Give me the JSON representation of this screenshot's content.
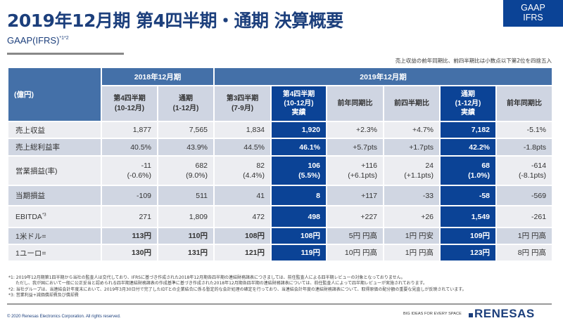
{
  "header": {
    "title": "2019年12月期 第4四半期・通期 決算概要",
    "subtitle": "GAAP(IFRS)",
    "subtitle_sup": "*1*2",
    "badge_line1": "GAAP",
    "badge_line2": "IFRS"
  },
  "note_top": "売上収益の前年同期比、前四半期比は小数点以下第2位を四捨五入",
  "table": {
    "unit_label": "(億円)",
    "group_2018": "2018年12月期",
    "group_2019": "2019年12月期",
    "columns": [
      {
        "line1": "第4四半期",
        "line2": "(10-12月)",
        "line3": ""
      },
      {
        "line1": "通期",
        "line2": "(1-12月)",
        "line3": ""
      },
      {
        "line1": "第3四半期",
        "line2": "(7-9月)",
        "line3": ""
      },
      {
        "line1": "第4四半期",
        "line2": "(10-12月)",
        "line3": "実績"
      },
      {
        "line1": "前年同期比",
        "line2": "",
        "line3": ""
      },
      {
        "line1": "前四半期比",
        "line2": "",
        "line3": ""
      },
      {
        "line1": "通期",
        "line2": "(1-12月)",
        "line3": "実績"
      },
      {
        "line1": "前年同期比",
        "line2": "",
        "line3": ""
      }
    ],
    "rows": [
      {
        "label": "売上収益",
        "label_sup": "",
        "cells": [
          {
            "v1": "1,877",
            "v2": ""
          },
          {
            "v1": "7,565",
            "v2": ""
          },
          {
            "v1": "1,834",
            "v2": ""
          },
          {
            "v1": "1,920",
            "v2": ""
          },
          {
            "v1": "+2.3%",
            "v2": ""
          },
          {
            "v1": "+4.7%",
            "v2": ""
          },
          {
            "v1": "7,182",
            "v2": ""
          },
          {
            "v1": "-5.1%",
            "v2": ""
          }
        ]
      },
      {
        "label": "売上総利益率",
        "label_sup": "",
        "cells": [
          {
            "v1": "40.5%",
            "v2": ""
          },
          {
            "v1": "43.9%",
            "v2": ""
          },
          {
            "v1": "44.5%",
            "v2": ""
          },
          {
            "v1": "46.1%",
            "v2": ""
          },
          {
            "v1": "+5.7pts",
            "v2": ""
          },
          {
            "v1": "+1.7pts",
            "v2": ""
          },
          {
            "v1": "42.2%",
            "v2": ""
          },
          {
            "v1": "-1.8pts",
            "v2": ""
          }
        ]
      },
      {
        "label": "営業損益(率)",
        "label_sup": "",
        "cells": [
          {
            "v1": "-11",
            "v2": "(-0.6%)"
          },
          {
            "v1": "682",
            "v2": "(9.0%)"
          },
          {
            "v1": "82",
            "v2": "(4.4%)"
          },
          {
            "v1": "106",
            "v2": "(5.5%)"
          },
          {
            "v1": "+116",
            "v2": "(+6.1pts)"
          },
          {
            "v1": "24",
            "v2": "(+1.1pts)"
          },
          {
            "v1": "68",
            "v2": "(1.0%)"
          },
          {
            "v1": "-614",
            "v2": "(-8.1pts)"
          }
        ]
      },
      {
        "label": "当期損益",
        "label_sup": "",
        "cells": [
          {
            "v1": "-109",
            "v2": ""
          },
          {
            "v1": "511",
            "v2": ""
          },
          {
            "v1": "41",
            "v2": ""
          },
          {
            "v1": "8",
            "v2": ""
          },
          {
            "v1": "+117",
            "v2": ""
          },
          {
            "v1": "-33",
            "v2": ""
          },
          {
            "v1": "-58",
            "v2": ""
          },
          {
            "v1": "-569",
            "v2": ""
          }
        ]
      },
      {
        "label": "EBITDA",
        "label_sup": "*3",
        "cells": [
          {
            "v1": "271",
            "v2": ""
          },
          {
            "v1": "1,809",
            "v2": ""
          },
          {
            "v1": "472",
            "v2": ""
          },
          {
            "v1": "498",
            "v2": ""
          },
          {
            "v1": "+227",
            "v2": ""
          },
          {
            "v1": "+26",
            "v2": ""
          },
          {
            "v1": "1,549",
            "v2": ""
          },
          {
            "v1": "-261",
            "v2": ""
          }
        ]
      },
      {
        "label": "1米ドル=",
        "label_sup": "",
        "cells": [
          {
            "v1": "113円",
            "v2": ""
          },
          {
            "v1": "110円",
            "v2": ""
          },
          {
            "v1": "108円",
            "v2": ""
          },
          {
            "v1": "108円",
            "v2": ""
          },
          {
            "v1": "5円 円高",
            "v2": ""
          },
          {
            "v1": "1円 円安",
            "v2": ""
          },
          {
            "v1": "109円",
            "v2": ""
          },
          {
            "v1": "1円 円高",
            "v2": ""
          }
        ]
      },
      {
        "label": "1ユーロ=",
        "label_sup": "",
        "cells": [
          {
            "v1": "130円",
            "v2": ""
          },
          {
            "v1": "131円",
            "v2": ""
          },
          {
            "v1": "121円",
            "v2": ""
          },
          {
            "v1": "119円",
            "v2": ""
          },
          {
            "v1": "10円 円高",
            "v2": ""
          },
          {
            "v1": "1円 円高",
            "v2": ""
          },
          {
            "v1": "123円",
            "v2": ""
          },
          {
            "v1": "8円 円高",
            "v2": ""
          }
        ]
      }
    ]
  },
  "footnotes": {
    "n1": "*1: 2019年12月期第1四半期から当社の監査人は交代しており、IFRSに基づき作成された2018年12月期各四半期の連結財務諸表につきましては、前任監査人による四半期レビューの対象となっておりません。",
    "n1b": "ただし、我が国において一般に公正妥当と認められる四半期連結財務諸表の作成基準に基づき作成された2018年12月期各四半期の連結財務諸表については、前任監査人によって四半期レビューが実施されております。",
    "n2": "*2: 当社グループは、当連結会計年度末において、2019年3月30日付で完了したIDTとの企業結合に係る暫定的な会計処理の確定を行っており、当連結会計年度の連結財務諸表について、取得原価の配分額の重要な見直しが反映されています。",
    "n3": "*3: 営業利益+減価償却費及び償却費"
  },
  "footer": {
    "copyright": "© 2020 Renesas Electronics Corporation. All rights reserved.",
    "tagline": "BIG IDEAS FOR EVERY SPACE",
    "logo_text": "RENESAS"
  },
  "colors": {
    "brand_navy": "#1c3f7c",
    "header_blue": "#4470a8",
    "highlight_blue": "#0b4396",
    "subheader_gray": "#cfd5e2",
    "row_light": "#ecedf1",
    "row_dark": "#d0d6e2"
  }
}
